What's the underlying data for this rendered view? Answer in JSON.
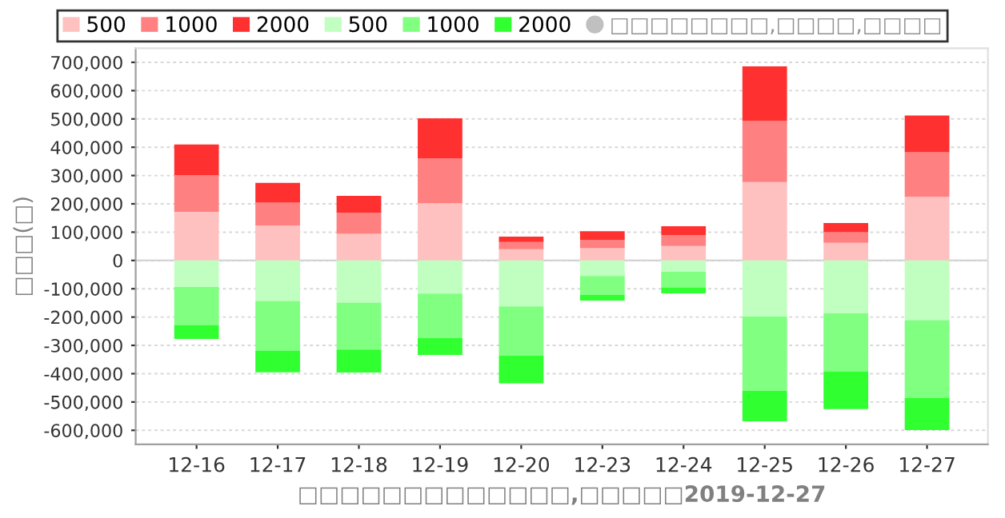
{
  "chart_data": {
    "type": "bar",
    "stacked": true,
    "xlabel": "□□□□□□□□□□□□□,□□□□□2019-12-27",
    "ylabel": "□□□(□)",
    "categories": [
      "12-16",
      "12-17",
      "12-18",
      "12-19",
      "12-20",
      "12-23",
      "12-24",
      "12-25",
      "12-26",
      "12-27"
    ],
    "series": [
      {
        "name": "500",
        "color": "#ffc0c0",
        "values": [
          172000,
          123000,
          94000,
          202000,
          40000,
          43000,
          51000,
          277000,
          62000,
          225000
        ]
      },
      {
        "name": "1000",
        "color": "#ff8080",
        "values": [
          130000,
          81000,
          74000,
          158000,
          25000,
          30000,
          38000,
          217000,
          38000,
          157000
        ]
      },
      {
        "name": "2000",
        "color": "#ff3030",
        "values": [
          108000,
          70000,
          60000,
          142000,
          19000,
          30000,
          32000,
          192000,
          32000,
          130000
        ]
      },
      {
        "name": "500",
        "color": "#c0ffc0",
        "values": [
          -94000,
          -143000,
          -149000,
          -117000,
          -162000,
          -55000,
          -40000,
          -198000,
          -187000,
          -211000
        ]
      },
      {
        "name": "1000",
        "color": "#80ff80",
        "values": [
          -134000,
          -175000,
          -166000,
          -157000,
          -174000,
          -66000,
          -55000,
          -262000,
          -206000,
          -275000
        ]
      },
      {
        "name": "2000",
        "color": "#30ff30",
        "values": [
          -49000,
          -77000,
          -81000,
          -60000,
          -98000,
          -21000,
          -21000,
          -108000,
          -132000,
          -113000
        ]
      },
      {
        "name": "□□□□□□□□,□□□□,□□□□",
        "type": "scatter",
        "marker": "circle",
        "color": "#c0c0c0",
        "values": [
          null,
          null,
          null,
          null,
          null,
          null,
          null,
          null,
          null,
          null
        ]
      }
    ],
    "ylim": [
      -650000,
      750000
    ],
    "yticks": [
      {
        "value": -600000,
        "label": "-600,000"
      },
      {
        "value": -500000,
        "label": "-500,000"
      },
      {
        "value": -400000,
        "label": "-400,000"
      },
      {
        "value": -300000,
        "label": "-300,000"
      },
      {
        "value": -200000,
        "label": "-200,000"
      },
      {
        "value": -100000,
        "label": "-100,000"
      },
      0,
      {
        "value": 100000,
        "label": "100,000"
      },
      {
        "value": 200000,
        "label": "200,000"
      },
      {
        "value": 300000,
        "label": "300,000"
      },
      {
        "value": 400000,
        "label": "400,000"
      },
      {
        "value": 500000,
        "label": "500,000"
      },
      {
        "value": 600000,
        "label": "600,000"
      },
      {
        "value": 700000,
        "label": "700,000"
      }
    ],
    "grid": "y",
    "legend": "top"
  }
}
